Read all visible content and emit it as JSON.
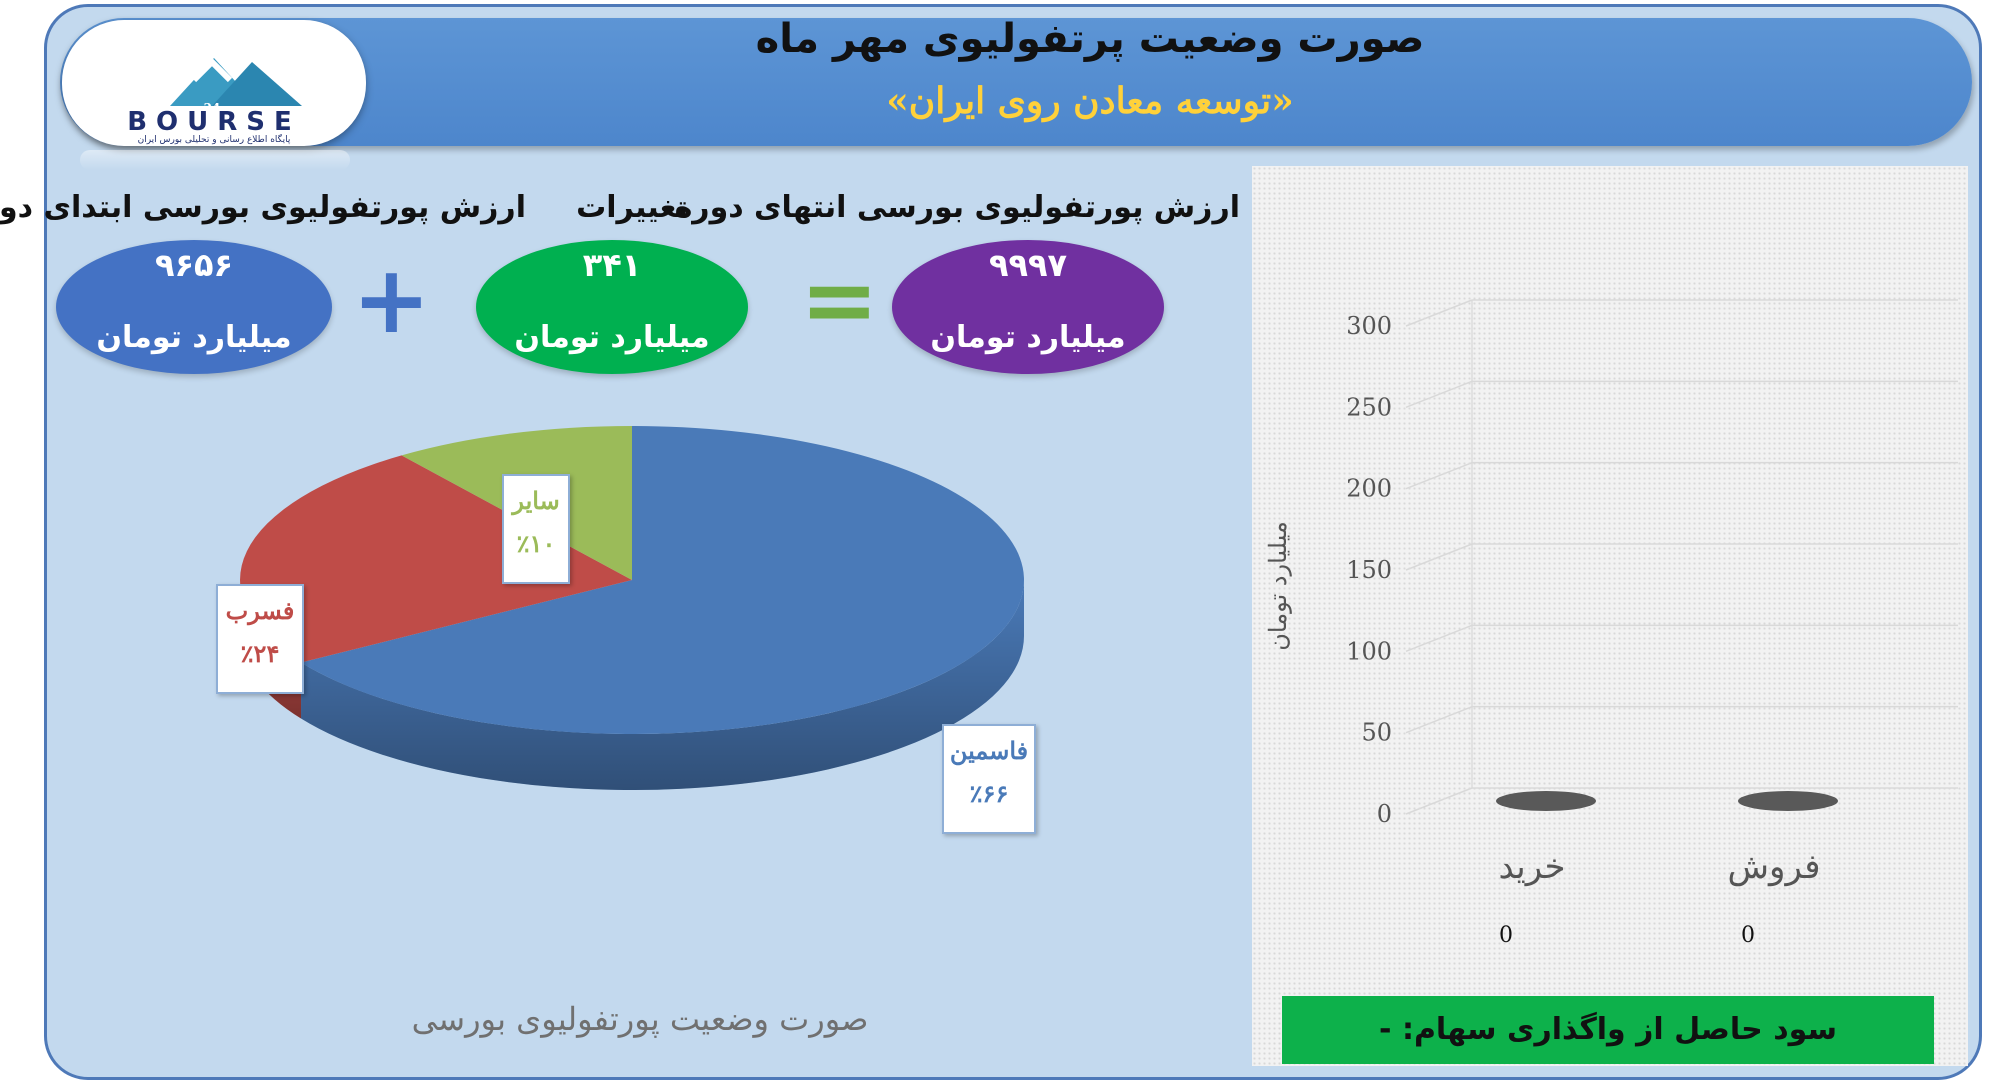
{
  "header": {
    "title": "صورت وضعیت پرتفولیوی مهر ماه",
    "subtitle": "«توسعه معادن روی ایران»"
  },
  "logo": {
    "text": "BOURSE",
    "tagline": "پایگاه اطلاع رسانی و تحلیلی بورس ایران"
  },
  "kpis": {
    "start": {
      "title": "ارزش پورتفولیوی بورسی ابتدای دوره",
      "value": "۹۶۵۶",
      "unit": "میلیارد تومان",
      "color": "#4472c4"
    },
    "change": {
      "title": "تغییرات",
      "value": "۳۴۱",
      "unit": "میلیارد تومان",
      "color": "#00b050"
    },
    "end": {
      "title": "ارزش پورتفولیوی بورسی انتهای دوره",
      "value": "۹۹۹۷",
      "unit": "میلیارد تومان",
      "color": "#7030a0"
    },
    "plus": "+",
    "equals": "="
  },
  "footer": {
    "profit_text": "سود حاصل از واگذاری سهام: -"
  },
  "chart_data": [
    {
      "type": "pie",
      "title": "صورت وضعیت پورتفولیوی بورسی",
      "slices": [
        {
          "name": "فاسمین",
          "label": "٪۶۶",
          "value": 66,
          "color": "#4a7ab8"
        },
        {
          "name": "فسرب",
          "label": "٪۲۴",
          "value": 24,
          "color": "#bf4c48"
        },
        {
          "name": "سایر",
          "label": "٪۱۰",
          "value": 10,
          "color": "#9bbb59"
        }
      ]
    },
    {
      "type": "bar",
      "categories": [
        "خرید",
        "فروش"
      ],
      "values": [
        0,
        0
      ],
      "data_labels": [
        "0",
        "0"
      ],
      "ylabel": "میلیارد تومان",
      "ylim": [
        0,
        300
      ],
      "yticks": [
        0,
        50,
        100,
        150,
        200,
        250,
        300
      ],
      "grid": true
    }
  ]
}
